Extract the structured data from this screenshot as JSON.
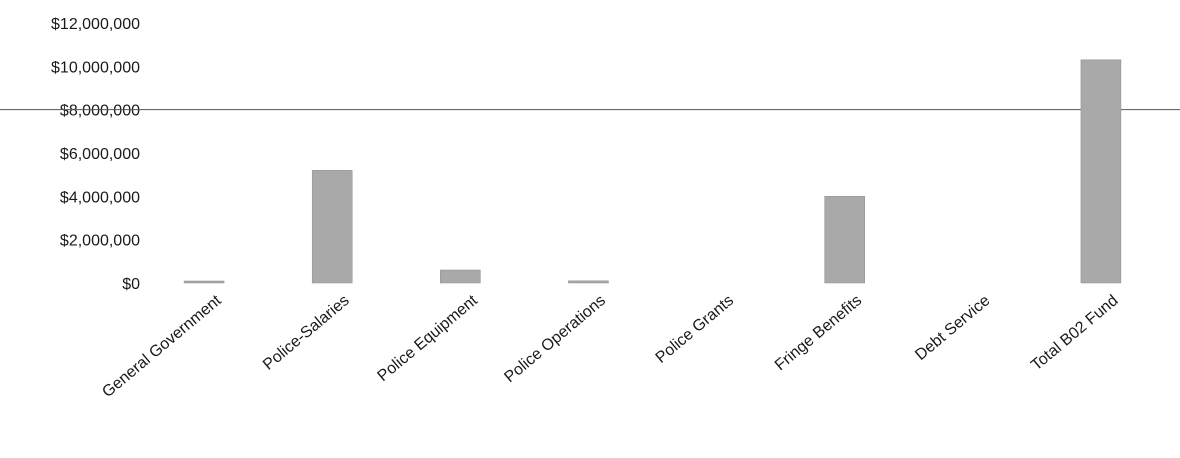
{
  "chart_data": {
    "type": "bar",
    "categories": [
      "General Government",
      "Police-Salaries",
      "Police Equipment",
      "Police Operations",
      "Police Grants",
      "Fringe Benefits",
      "Debt Service",
      "Total B02 Fund"
    ],
    "values": [
      60000,
      5200000,
      600000,
      100000,
      0,
      4000000,
      0,
      10300000
    ],
    "yticks": [
      "$0",
      "$2,000,000",
      "$4,000,000",
      "$6,000,000",
      "$8,000,000",
      "$10,000,000",
      "$12,000,000"
    ],
    "ylim": [
      0,
      12000000
    ],
    "grid": "single line at $8,000,000",
    "bar_color": "#a9a9a9",
    "title": "",
    "xlabel": "",
    "ylabel": ""
  }
}
